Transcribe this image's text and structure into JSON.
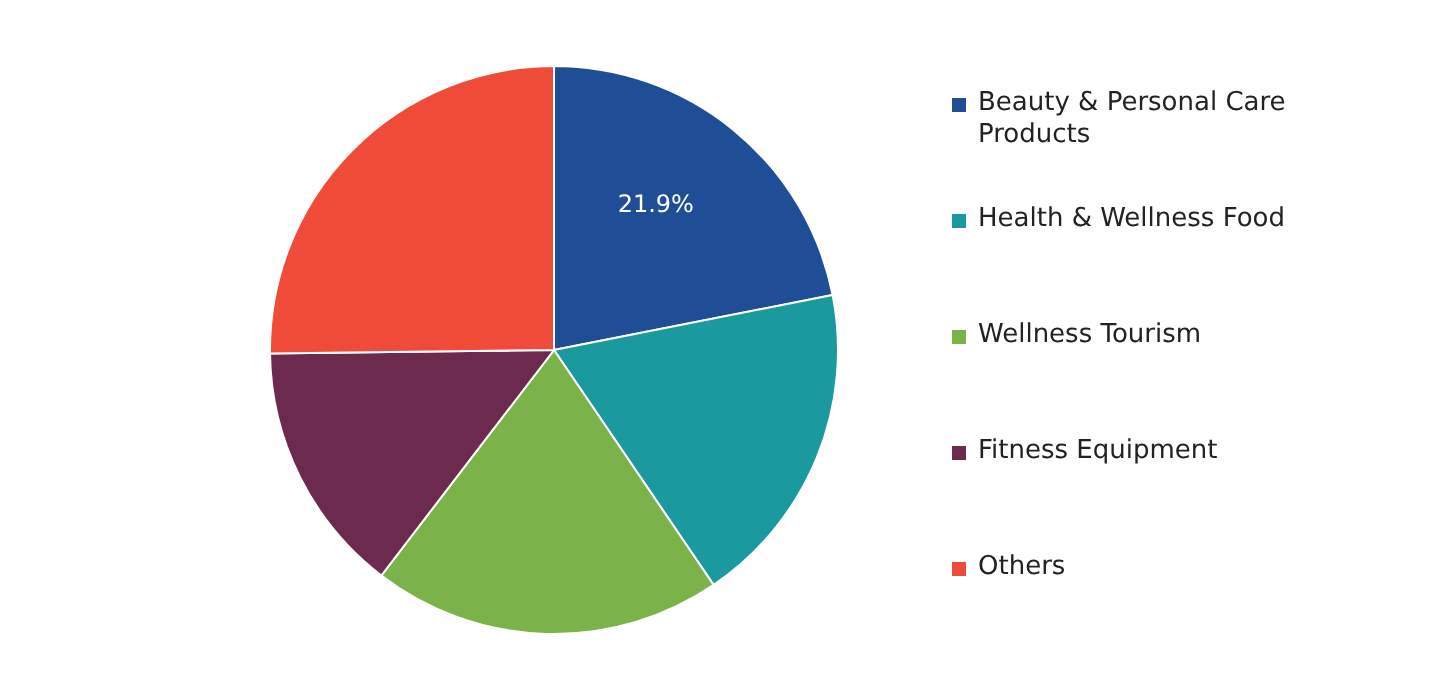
{
  "chart_data": {
    "type": "pie",
    "categories": [
      "Beauty & Personal Care Products",
      "Health & Wellness Food",
      "Wellness Tourism",
      "Fitness Equipment",
      "Others"
    ],
    "values": [
      21.9,
      18.6,
      19.9,
      14.4,
      25.2
    ],
    "colors": [
      "#1f4e96",
      "#1a9a9f",
      "#7cb24a",
      "#6d2a4f",
      "#f04a38"
    ],
    "value_labels": [
      "21.9%",
      null,
      null,
      null,
      null
    ],
    "legend": "right"
  }
}
